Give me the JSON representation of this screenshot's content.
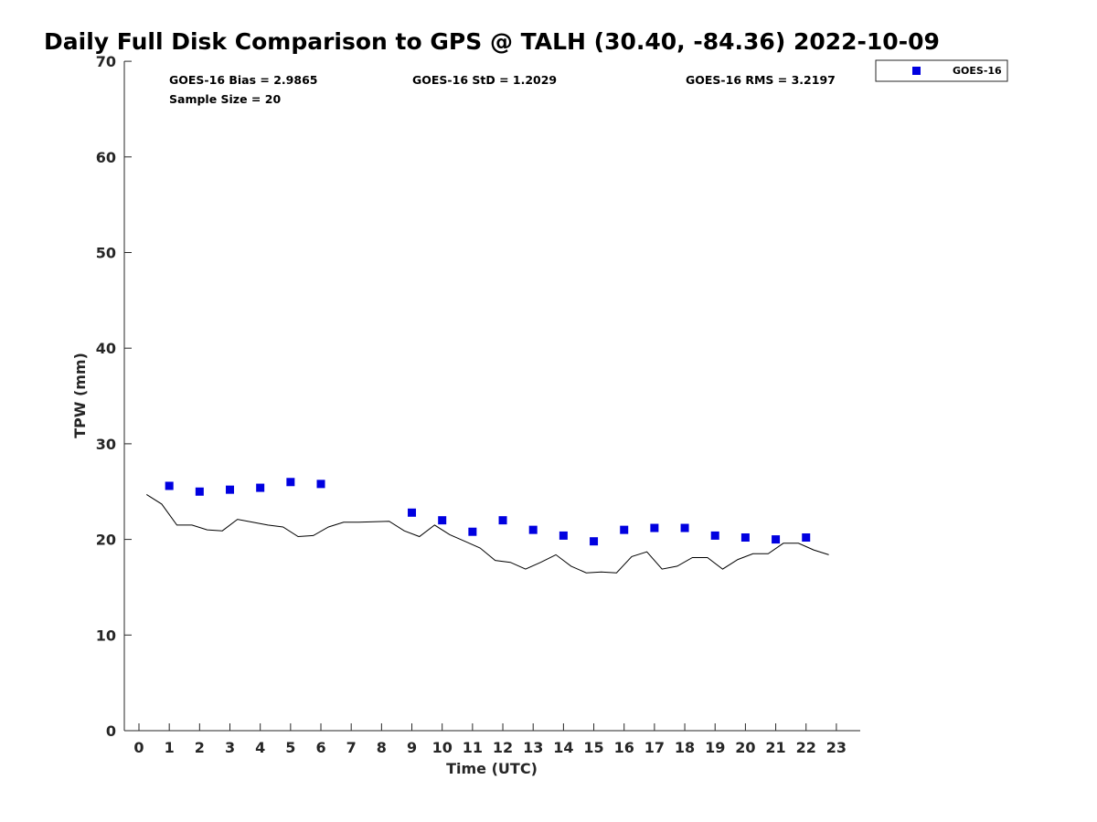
{
  "chart_data": {
    "type": "scatter",
    "title": "Daily Full Disk Comparison to GPS @ TALH (30.40, -84.36) 2022-10-09",
    "xlabel": "Time (UTC)",
    "ylabel": "TPW (mm)",
    "xlim": [
      -1,
      24
    ],
    "ylim": [
      0,
      70
    ],
    "xticks": [
      0,
      1,
      2,
      3,
      4,
      5,
      6,
      7,
      8,
      9,
      10,
      11,
      12,
      13,
      14,
      15,
      16,
      17,
      18,
      19,
      20,
      21,
      22,
      23
    ],
    "yticks": [
      0,
      10,
      20,
      30,
      40,
      50,
      60,
      70
    ],
    "grid": false,
    "legend_placement": "outside-top-right",
    "stats": {
      "bias": "GOES-16 Bias = 2.9865",
      "std": "GOES-16 StD = 1.2029",
      "rms": "GOES-16 RMS = 3.2197",
      "sample": "Sample Size = 20"
    },
    "series": [
      {
        "name": "GOES-16",
        "kind": "scatter",
        "marker": "square",
        "color": "#0000e0",
        "x": [
          1,
          2,
          3,
          4,
          5,
          6,
          9,
          10,
          11,
          12,
          13,
          14,
          15,
          16,
          17,
          18,
          19,
          20,
          21,
          22
        ],
        "y": [
          25.6,
          25.0,
          25.2,
          25.4,
          26.0,
          25.8,
          22.8,
          22.0,
          20.8,
          22.0,
          21.0,
          20.4,
          19.8,
          21.0,
          21.2,
          21.2,
          20.4,
          20.2,
          20.0,
          20.2
        ]
      },
      {
        "kind": "line",
        "color": "#000000",
        "x": [
          0.25,
          0.75,
          1.25,
          1.75,
          2.25,
          2.75,
          3.25,
          3.75,
          4.25,
          4.75,
          5.25,
          5.75,
          6.25,
          6.75,
          7.25,
          7.75,
          8.25,
          8.75,
          9.25,
          9.75,
          10.25,
          10.75,
          11.25,
          11.75,
          12.25,
          12.75,
          13.25,
          13.75,
          14.25,
          14.75,
          15.25,
          15.75,
          16.25,
          16.75,
          17.25,
          17.75,
          18.25,
          18.75,
          19.25,
          19.75,
          20.25,
          20.75,
          21.25,
          21.75,
          22.25,
          22.75
        ],
        "y": [
          24.7,
          23.7,
          21.5,
          21.5,
          21.0,
          20.9,
          22.1,
          21.8,
          21.5,
          21.3,
          20.3,
          20.4,
          21.3,
          21.8,
          21.8,
          21.85,
          21.9,
          20.9,
          20.3,
          21.5,
          20.5,
          19.8,
          19.1,
          17.8,
          17.6,
          16.9,
          17.6,
          18.4,
          17.2,
          16.5,
          16.6,
          16.5,
          18.2,
          18.7,
          16.9,
          17.2,
          18.1,
          18.1,
          16.9,
          17.9,
          18.5,
          18.5,
          19.6,
          19.6,
          18.9,
          18.4
        ]
      }
    ]
  }
}
